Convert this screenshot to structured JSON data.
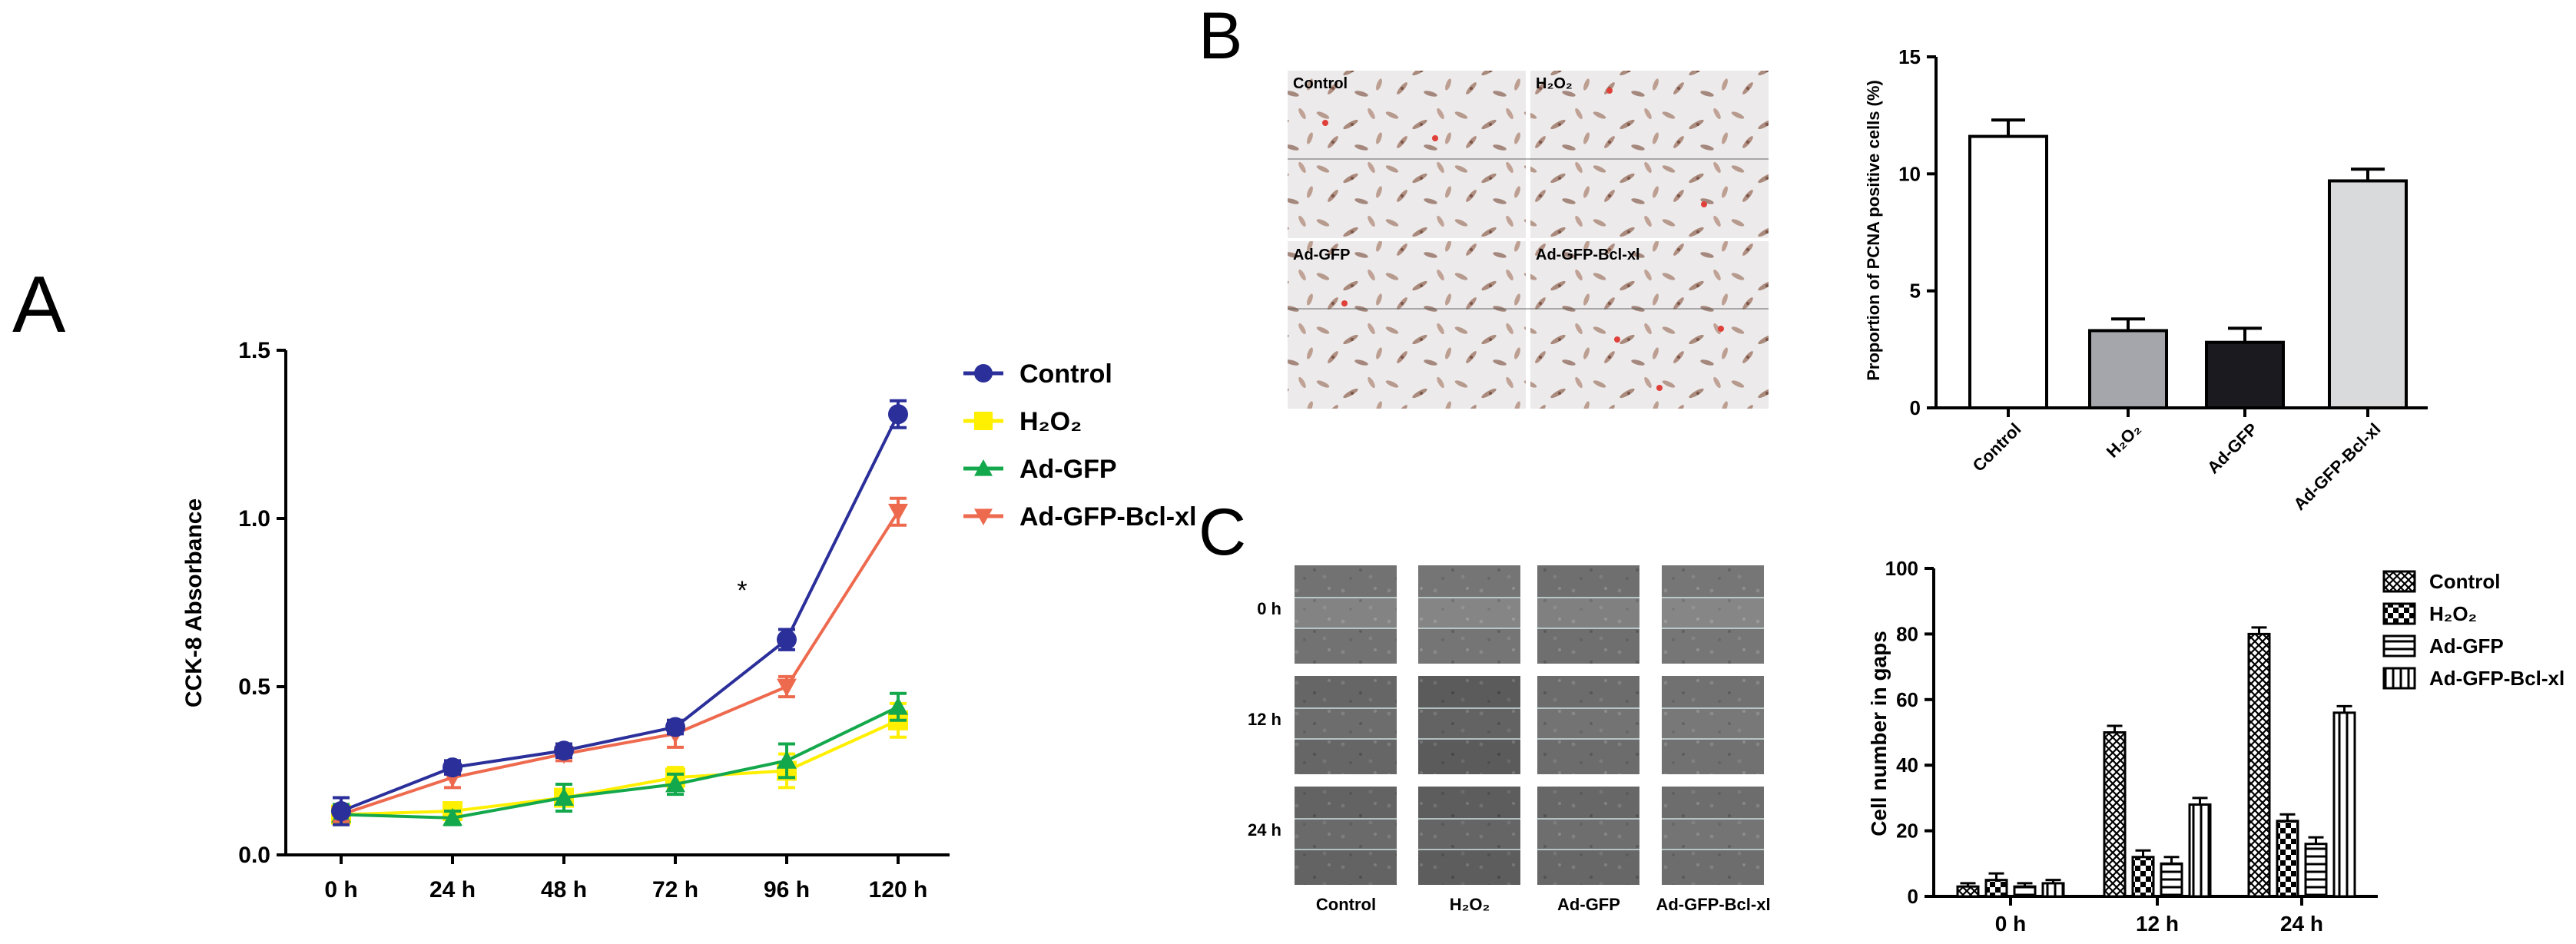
{
  "panels": {
    "a": {
      "letter": "A"
    },
    "b": {
      "letter": "B",
      "image_labels": [
        "Control",
        "H₂O₂",
        "Ad-GFP",
        "Ad-GFP-Bcl-xl"
      ]
    },
    "c": {
      "letter": "C",
      "row_labels": [
        "0 h",
        "12 h",
        "24 h"
      ],
      "col_labels": [
        "Control",
        "H₂O₂",
        "Ad-GFP",
        "Ad-GFP-Bcl-xl"
      ]
    }
  },
  "colors": {
    "control": "#2b2f9a",
    "h2o2": "#ffef00",
    "adgfp": "#14a84c",
    "adgfpbcl": "#ee6a4f",
    "bar_control": "#ffffff",
    "bar_h2o2": "#a5a6ac",
    "bar_adgfp": "#1b1b1f",
    "bar_adgfpbcl": "#d9dadc"
  },
  "chart_data": [
    {
      "id": "cck8",
      "type": "line",
      "categories": [
        "0 h",
        "24 h",
        "48 h",
        "72 h",
        "96 h",
        "120 h"
      ],
      "xlabel": "",
      "ylabel": "CCK-8 Absorbance",
      "ylim": [
        0,
        1.5
      ],
      "yticks": [
        "0.0",
        "0.5",
        "1.0",
        "1.5"
      ],
      "annotation": "*",
      "legend_position": "right",
      "series": [
        {
          "name": "Control",
          "marker": "circle",
          "values": [
            0.13,
            0.26,
            0.31,
            0.38,
            0.64,
            1.31
          ],
          "errors": [
            0.04,
            0.02,
            0.02,
            0.02,
            0.03,
            0.04
          ]
        },
        {
          "name": "H₂O₂",
          "marker": "square",
          "values": [
            0.12,
            0.13,
            0.17,
            0.23,
            0.25,
            0.4
          ],
          "errors": [
            0.03,
            0.02,
            0.02,
            0.03,
            0.05,
            0.05
          ]
        },
        {
          "name": "Ad-GFP",
          "marker": "triangle-up",
          "values": [
            0.12,
            0.11,
            0.17,
            0.21,
            0.28,
            0.44
          ],
          "errors": [
            0.03,
            0.02,
            0.04,
            0.03,
            0.05,
            0.04
          ]
        },
        {
          "name": "Ad-GFP-Bcl-xl",
          "marker": "triangle-down",
          "values": [
            0.12,
            0.23,
            0.3,
            0.36,
            0.5,
            1.02
          ],
          "errors": [
            0.02,
            0.03,
            0.02,
            0.04,
            0.03,
            0.04
          ]
        }
      ]
    },
    {
      "id": "pcna",
      "type": "bar",
      "categories": [
        "Control",
        "H₂O₂",
        "Ad-GFP",
        "Ad-GFP-Bcl-xl"
      ],
      "values": [
        11.6,
        3.3,
        2.8,
        9.7
      ],
      "errors": [
        0.7,
        0.5,
        0.6,
        0.5
      ],
      "ylabel": "Proportion of PCNA positive cells (%)",
      "ylim": [
        0,
        15
      ],
      "yticks": [
        "0",
        "5",
        "10",
        "15"
      ]
    },
    {
      "id": "gaps",
      "type": "bar",
      "categories": [
        "0 h",
        "12 h",
        "24 h"
      ],
      "ylabel": "Cell number in gaps",
      "ylim": [
        0,
        100
      ],
      "yticks": [
        "0",
        "20",
        "40",
        "60",
        "80",
        "100"
      ],
      "legend_position": "top-right",
      "series": [
        {
          "name": "Control",
          "values": [
            3,
            50,
            80
          ],
          "errors": [
            1,
            2,
            2
          ]
        },
        {
          "name": "H₂O₂",
          "values": [
            5,
            12,
            23
          ],
          "errors": [
            2,
            2,
            2
          ]
        },
        {
          "name": "Ad-GFP",
          "values": [
            3,
            10,
            16
          ],
          "errors": [
            1,
            2,
            2
          ]
        },
        {
          "name": "Ad-GFP-Bcl-xl",
          "values": [
            4,
            28,
            56
          ],
          "errors": [
            1,
            2,
            2
          ]
        }
      ]
    }
  ]
}
